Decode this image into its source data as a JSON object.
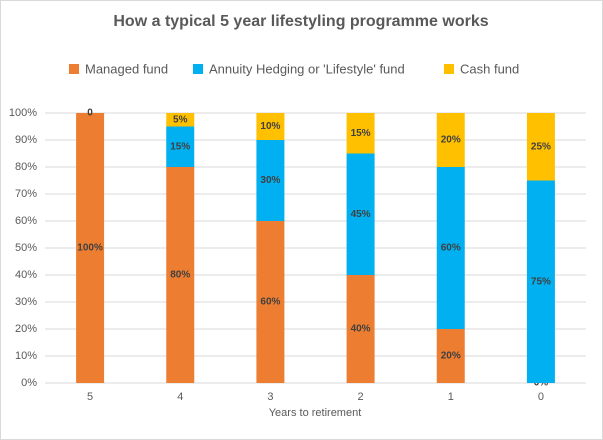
{
  "chart_data": {
    "type": "stacked_bar",
    "title": "How a typical 5 year lifestyling programme works",
    "x_label": "Years to retirement",
    "categories": [
      "5",
      "4",
      "3",
      "2",
      "1",
      "0"
    ],
    "series": [
      {
        "name": "Managed fund",
        "color": "#ED7D31",
        "values": [
          100,
          80,
          60,
          40,
          20,
          0
        ],
        "value_labels": [
          "100%",
          "80%",
          "60%",
          "40%",
          "20%",
          "0%"
        ]
      },
      {
        "name": "Annuity Hedging or 'Lifestyle' fund",
        "color": "#00B0F0",
        "values": [
          0,
          15,
          30,
          45,
          60,
          75
        ],
        "value_labels": [
          null,
          "15%",
          "30%",
          "45%",
          "60%",
          "75%"
        ]
      },
      {
        "name": "Cash fund",
        "color": "#FFC000",
        "values": [
          0,
          5,
          10,
          15,
          20,
          25
        ],
        "value_labels": [
          "0",
          "5%",
          "10%",
          "15%",
          "20%",
          "25%"
        ]
      }
    ],
    "ylim": [
      0,
      100
    ],
    "yticks": [
      {
        "value": 0,
        "label": "0%"
      },
      {
        "value": 10,
        "label": "10%"
      },
      {
        "value": 20,
        "label": "20%"
      },
      {
        "value": 30,
        "label": "30%"
      },
      {
        "value": 40,
        "label": "40%"
      },
      {
        "value": 50,
        "label": "50%"
      },
      {
        "value": 60,
        "label": "60%"
      },
      {
        "value": 70,
        "label": "70%"
      },
      {
        "value": 80,
        "label": "80%"
      },
      {
        "value": 90,
        "label": "90%"
      },
      {
        "value": 100,
        "label": "100%"
      }
    ],
    "grid": true,
    "legend": "top"
  }
}
